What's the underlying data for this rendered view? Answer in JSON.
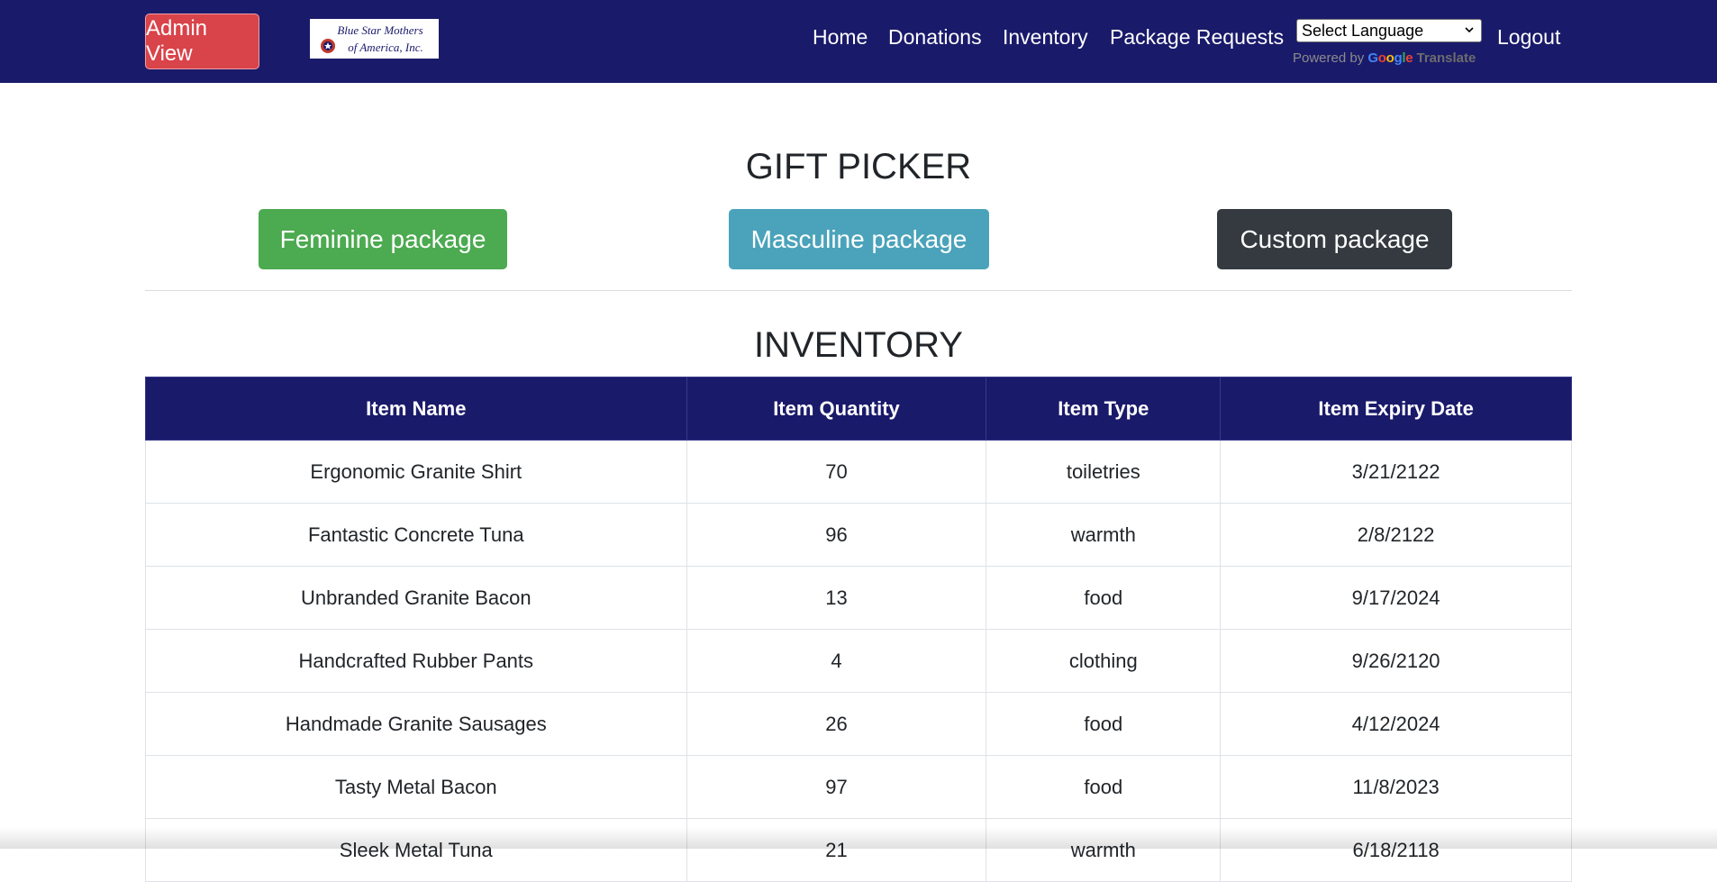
{
  "navbar": {
    "admin_label": "Admin View",
    "logo_line1": "Blue Star Mothers",
    "logo_line2": "of America, Inc.",
    "links": [
      "Home",
      "Donations",
      "Inventory",
      "Package Requests"
    ],
    "language_select": "Select Language",
    "powered_by": "Powered by",
    "google": "Google",
    "translate": "Translate",
    "logout": "Logout"
  },
  "gift_picker": {
    "title": "GIFT PICKER",
    "buttons": [
      {
        "label": "Feminine package",
        "color": "#4caa50"
      },
      {
        "label": "Masculine package",
        "color": "#4aa3ba"
      },
      {
        "label": "Custom package",
        "color": "#343a40"
      }
    ]
  },
  "inventory": {
    "title": "INVENTORY",
    "columns": [
      "Item Name",
      "Item Quantity",
      "Item Type",
      "Item Expiry Date"
    ],
    "rows": [
      [
        "Ergonomic Granite Shirt",
        "70",
        "toiletries",
        "3/21/2122"
      ],
      [
        "Fantastic Concrete Tuna",
        "96",
        "warmth",
        "2/8/2122"
      ],
      [
        "Unbranded Granite Bacon",
        "13",
        "food",
        "9/17/2024"
      ],
      [
        "Handcrafted Rubber Pants",
        "4",
        "clothing",
        "9/26/2120"
      ],
      [
        "Handmade Granite Sausages",
        "26",
        "food",
        "4/12/2024"
      ],
      [
        "Tasty Metal Bacon",
        "97",
        "food",
        "11/8/2023"
      ],
      [
        "Sleek Metal Tuna",
        "21",
        "warmth",
        "6/18/2118"
      ]
    ]
  },
  "colors": {
    "navbar": "#1a1a6b",
    "admin_button": "#d9434a"
  }
}
